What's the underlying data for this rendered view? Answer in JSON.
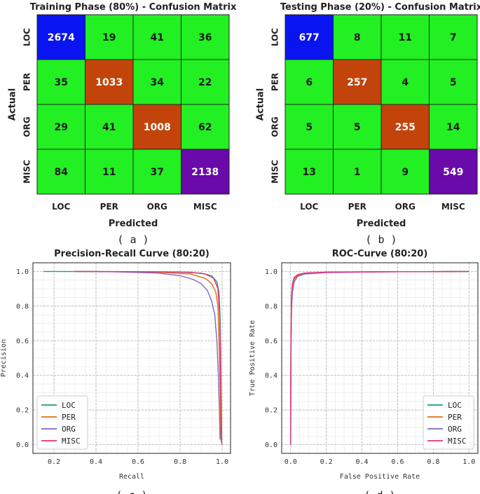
{
  "chart_data": [
    {
      "type": "heatmap",
      "title": "Training Phase (80%) - Confusion Matrix",
      "xlabel": "Predicted",
      "ylabel": "Actual",
      "x_categories": [
        "LOC",
        "PER",
        "ORG",
        "MISC"
      ],
      "y_categories": [
        "LOC",
        "PER",
        "ORG",
        "MISC"
      ],
      "values": [
        [
          2674,
          19,
          41,
          36
        ],
        [
          35,
          1033,
          34,
          22
        ],
        [
          29,
          41,
          1008,
          62
        ],
        [
          84,
          11,
          37,
          2138
        ]
      ],
      "diagonal_colors": [
        "#0a14f0",
        "#c3440a",
        "#c3440a",
        "#6a0aaa"
      ],
      "offdiag_color": "#22f022",
      "caption": "( a )"
    },
    {
      "type": "heatmap",
      "title": "Testing Phase (20%) - Confusion Matrix",
      "xlabel": "Predicted",
      "ylabel": "Actual",
      "x_categories": [
        "LOC",
        "PER",
        "ORG",
        "MISC"
      ],
      "y_categories": [
        "LOC",
        "PER",
        "ORG",
        "MISC"
      ],
      "values": [
        [
          677,
          8,
          11,
          7
        ],
        [
          6,
          257,
          4,
          5
        ],
        [
          5,
          5,
          255,
          14
        ],
        [
          13,
          1,
          9,
          549
        ]
      ],
      "diagonal_colors": [
        "#0a14f0",
        "#c3440a",
        "#c3440a",
        "#6a0aaa"
      ],
      "offdiag_color": "#22f022",
      "caption": "( b )"
    },
    {
      "type": "line",
      "title": "Precision-Recall Curve (80:20)",
      "xlabel": "Recall",
      "ylabel": "Precision",
      "xlim": [
        0.1,
        1.04
      ],
      "ylim": [
        -0.05,
        1.05
      ],
      "xticks": [
        "0.2",
        "0.4",
        "0.6",
        "0.8",
        "1.0"
      ],
      "yticks": [
        "0.0",
        "0.2",
        "0.4",
        "0.6",
        "0.8",
        "1.0"
      ],
      "legend_position": "lower-left",
      "series": [
        {
          "name": "LOC",
          "color": "#1a9c83",
          "x": [
            0.15,
            0.4,
            0.6,
            0.8,
            0.9,
            0.95,
            0.975,
            0.985,
            0.99,
            0.993,
            0.995,
            0.997,
            0.998,
            0.998
          ],
          "y": [
            1.0,
            0.999,
            0.998,
            0.996,
            0.99,
            0.975,
            0.94,
            0.88,
            0.75,
            0.55,
            0.3,
            0.1,
            0.03,
            0.01
          ]
        },
        {
          "name": "PER",
          "color": "#e06d10",
          "x": [
            0.3,
            0.5,
            0.7,
            0.85,
            0.92,
            0.95,
            0.97,
            0.98,
            0.985,
            0.99,
            0.993,
            0.995
          ],
          "y": [
            1.0,
            0.998,
            0.995,
            0.985,
            0.96,
            0.93,
            0.88,
            0.8,
            0.6,
            0.35,
            0.1,
            0.02
          ]
        },
        {
          "name": "ORG",
          "color": "#7b6cc4",
          "x": [
            0.3,
            0.5,
            0.7,
            0.8,
            0.86,
            0.9,
            0.93,
            0.95,
            0.965,
            0.975,
            0.982,
            0.988,
            0.99
          ],
          "y": [
            1.0,
            0.998,
            0.99,
            0.975,
            0.955,
            0.93,
            0.89,
            0.83,
            0.75,
            0.6,
            0.4,
            0.15,
            0.03
          ]
        },
        {
          "name": "MISC",
          "color": "#e8307a",
          "x": [
            0.3,
            0.5,
            0.7,
            0.85,
            0.92,
            0.96,
            0.98,
            0.988,
            0.992,
            0.995,
            0.997,
            0.998
          ],
          "y": [
            1.0,
            0.999,
            0.998,
            0.995,
            0.985,
            0.96,
            0.9,
            0.75,
            0.5,
            0.25,
            0.07,
            0.0
          ]
        }
      ]
    },
    {
      "type": "line",
      "title": "ROC-Curve (80:20)",
      "xlabel": "False Positive Rate",
      "ylabel": "True Positive Rate",
      "xlim": [
        -0.05,
        1.05
      ],
      "ylim": [
        -0.05,
        1.05
      ],
      "xticks": [
        "0.0",
        "0.2",
        "0.4",
        "0.6",
        "0.8",
        "1.0"
      ],
      "yticks": [
        "0.0",
        "0.2",
        "0.4",
        "0.6",
        "0.8",
        "1.0"
      ],
      "legend_position": "lower-right",
      "series": [
        {
          "name": "LOC",
          "color": "#1a9c83",
          "x": [
            0.0,
            0.002,
            0.005,
            0.01,
            0.02,
            0.04,
            0.08,
            0.2,
            0.5,
            1.0
          ],
          "y": [
            0.0,
            0.6,
            0.85,
            0.92,
            0.96,
            0.98,
            0.99,
            0.995,
            0.998,
            1.0
          ]
        },
        {
          "name": "PER",
          "color": "#e06d10",
          "x": [
            0.0,
            0.002,
            0.005,
            0.01,
            0.02,
            0.04,
            0.08,
            0.2,
            0.5,
            1.0
          ],
          "y": [
            0.0,
            0.55,
            0.82,
            0.91,
            0.955,
            0.978,
            0.99,
            0.995,
            0.998,
            1.0
          ]
        },
        {
          "name": "ORG",
          "color": "#7b6cc4",
          "x": [
            0.0,
            0.002,
            0.005,
            0.01,
            0.02,
            0.04,
            0.08,
            0.2,
            0.5,
            1.0
          ],
          "y": [
            0.0,
            0.5,
            0.78,
            0.88,
            0.94,
            0.972,
            0.985,
            0.993,
            0.998,
            1.0
          ]
        },
        {
          "name": "MISC",
          "color": "#e8307a",
          "x": [
            0.0,
            0.002,
            0.005,
            0.01,
            0.02,
            0.04,
            0.08,
            0.2,
            0.5,
            1.0
          ],
          "y": [
            0.0,
            0.6,
            0.86,
            0.93,
            0.965,
            0.982,
            0.991,
            0.996,
            0.998,
            1.0
          ]
        }
      ]
    }
  ]
}
